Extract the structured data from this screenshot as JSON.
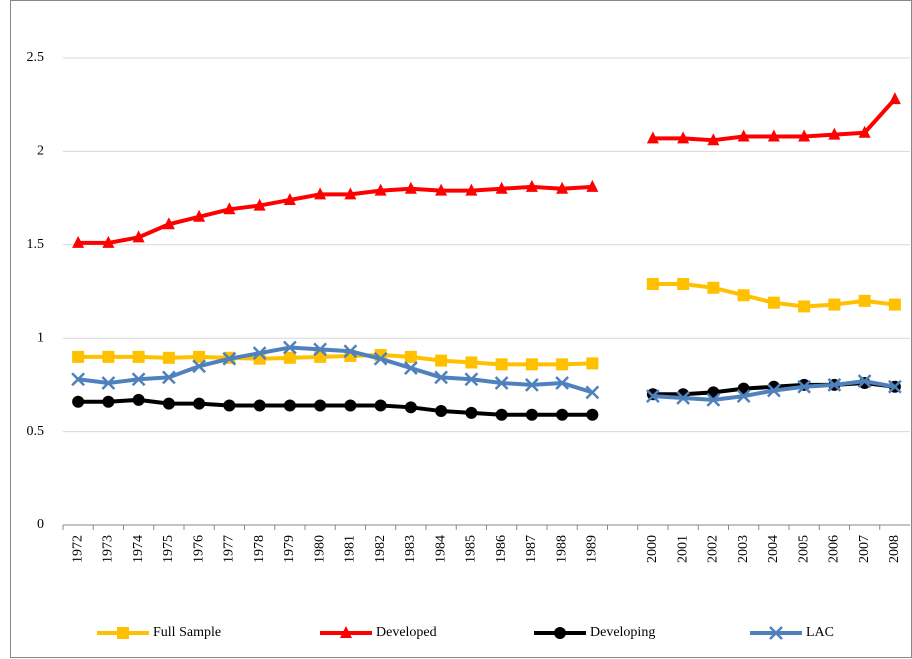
{
  "chart_data": {
    "type": "line",
    "categories": [
      "1972",
      "1973",
      "1974",
      "1975",
      "1976",
      "1977",
      "1978",
      "1979",
      "1980",
      "1981",
      "1982",
      "1983",
      "1984",
      "1985",
      "1986",
      "1987",
      "1988",
      "1989",
      null,
      "2000",
      "2001",
      "2002",
      "2003",
      "2004",
      "2005",
      "2006",
      "2007",
      "2008"
    ],
    "series": [
      {
        "name": "Full Sample",
        "color": "#ffc000",
        "marker": "square",
        "values": [
          0.9,
          0.9,
          0.9,
          0.895,
          0.9,
          0.895,
          0.89,
          0.895,
          0.9,
          0.905,
          0.91,
          0.9,
          0.88,
          0.87,
          0.86,
          0.86,
          0.86,
          0.865,
          null,
          1.29,
          1.29,
          1.27,
          1.23,
          1.19,
          1.17,
          1.18,
          1.2,
          1.18
        ]
      },
      {
        "name": "Developed",
        "color": "#ff0000",
        "marker": "triangle",
        "values": [
          1.51,
          1.51,
          1.54,
          1.61,
          1.65,
          1.69,
          1.71,
          1.74,
          1.77,
          1.77,
          1.79,
          1.8,
          1.79,
          1.79,
          1.8,
          1.81,
          1.8,
          1.81,
          null,
          2.07,
          2.07,
          2.06,
          2.08,
          2.08,
          2.08,
          2.09,
          2.1,
          2.28
        ]
      },
      {
        "name": "Developing",
        "color": "#000000",
        "marker": "circle",
        "values": [
          0.66,
          0.66,
          0.67,
          0.65,
          0.65,
          0.64,
          0.64,
          0.64,
          0.64,
          0.64,
          0.64,
          0.63,
          0.61,
          0.6,
          0.59,
          0.59,
          0.59,
          0.59,
          null,
          0.7,
          0.7,
          0.71,
          0.73,
          0.74,
          0.75,
          0.75,
          0.76,
          0.74
        ]
      },
      {
        "name": "LAC",
        "color": "#4f81bd",
        "marker": "x",
        "values": [
          0.78,
          0.76,
          0.78,
          0.79,
          0.85,
          0.89,
          0.92,
          0.95,
          0.94,
          0.93,
          0.89,
          0.84,
          0.79,
          0.78,
          0.76,
          0.75,
          0.76,
          0.71,
          null,
          0.69,
          0.68,
          0.67,
          0.69,
          0.72,
          0.74,
          0.75,
          0.77,
          0.74
        ]
      }
    ],
    "ylim": [
      0,
      2.5
    ],
    "yticks": [
      0,
      0.5,
      1,
      1.5,
      2,
      2.5
    ],
    "grid": true,
    "legend": "bottom"
  }
}
